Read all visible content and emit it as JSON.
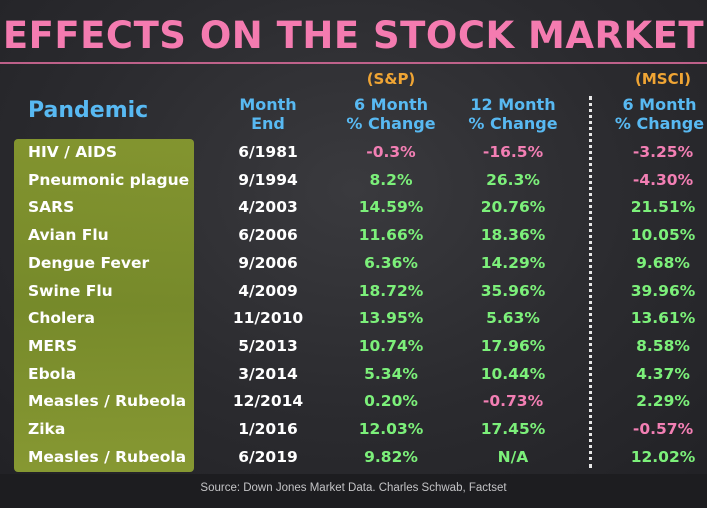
{
  "title": "EFFECTS ON THE STOCK MARKET",
  "headers": {
    "pandemic": "Pandemic",
    "month_end": [
      "Month",
      "End"
    ],
    "sp_source": "(S&P)",
    "sp_6m": [
      "6 Month",
      "% Change"
    ],
    "sp_12m": [
      "12 Month",
      "% Change"
    ],
    "msci_source": "(MSCI)",
    "msci_6m": [
      "6 Month",
      "% Change"
    ]
  },
  "rows": [
    {
      "name": "HIV / AIDS",
      "date": "6/1981",
      "sp6": "-0.3%",
      "sp12": "-16.5%",
      "msci": "-3.25%"
    },
    {
      "name": "Pneumonic plague",
      "date": "9/1994",
      "sp6": "8.2%",
      "sp12": "26.3%",
      "msci": "-4.30%"
    },
    {
      "name": "SARS",
      "date": "4/2003",
      "sp6": "14.59%",
      "sp12": "20.76%",
      "msci": "21.51%"
    },
    {
      "name": "Avian Flu",
      "date": "6/2006",
      "sp6": "11.66%",
      "sp12": "18.36%",
      "msci": "10.05%"
    },
    {
      "name": "Dengue Fever",
      "date": "9/2006",
      "sp6": "6.36%",
      "sp12": "14.29%",
      "msci": "9.68%"
    },
    {
      "name": "Swine Flu",
      "date": "4/2009",
      "sp6": "18.72%",
      "sp12": "35.96%",
      "msci": "39.96%"
    },
    {
      "name": "Cholera",
      "date": "11/2010",
      "sp6": "13.95%",
      "sp12": "5.63%",
      "msci": "13.61%"
    },
    {
      "name": "MERS",
      "date": "5/2013",
      "sp6": "10.74%",
      "sp12": "17.96%",
      "msci": "8.58%"
    },
    {
      "name": "Ebola",
      "date": "3/2014",
      "sp6": "5.34%",
      "sp12": "10.44%",
      "msci": "4.37%"
    },
    {
      "name": "Measles / Rubeola",
      "date": "12/2014",
      "sp6": "0.20%",
      "sp12": "-0.73%",
      "msci": "2.29%"
    },
    {
      "name": "Zika",
      "date": "1/2016",
      "sp6": "12.03%",
      "sp12": "17.45%",
      "msci": "-0.57%"
    },
    {
      "name": "Measles / Rubeola",
      "date": "6/2019",
      "sp6": "9.82%",
      "sp12": "N/A",
      "msci": "12.02%"
    }
  ],
  "footer": "Source: Down Jones Market Data. Charles Schwab, Factset",
  "colors": {
    "title": "#f47bb0",
    "header": "#58b9f2",
    "source": "#f0a534",
    "positive": "#7cf07a",
    "negative": "#f37fb4",
    "highlight": "#8a9d2f"
  }
}
